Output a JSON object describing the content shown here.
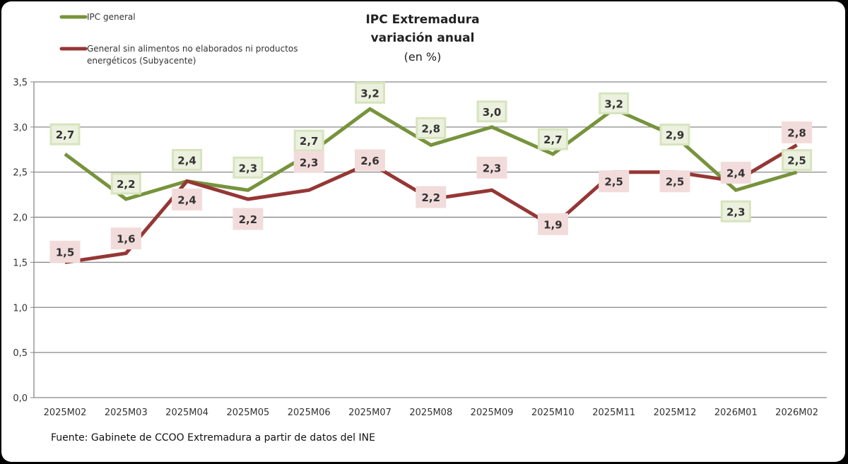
{
  "chart_data": {
    "type": "line",
    "title": "IPC Extremadura",
    "title_line2": "variación anual",
    "subtitle": "(en %)",
    "categories": [
      "2025M02",
      "2025M03",
      "2025M04",
      "2025M05",
      "2025M06",
      "2025M07",
      "2025M08",
      "2025M09",
      "2025M10",
      "2025M11",
      "2025M12",
      "2026M01",
      "2026M02"
    ],
    "ylim": [
      0,
      3.5
    ],
    "yticks": [
      "0,0",
      "0,5",
      "1,0",
      "1,5",
      "2,0",
      "2,5",
      "3,0",
      "3,5"
    ],
    "grid": true,
    "legend_position": "top-left",
    "series": [
      {
        "name": "IPC general",
        "color": "#77933c",
        "label_fill": "#ebf1de",
        "label_border": "#d7e4bd",
        "values": [
          2.7,
          2.2,
          2.4,
          2.3,
          2.7,
          3.2,
          2.8,
          3.0,
          2.7,
          3.2,
          2.9,
          2.3,
          2.5
        ],
        "labels": [
          "2,7",
          "2,2",
          "2,4",
          "2,3",
          "2,7",
          "3,2",
          "2,8",
          "3,0",
          "2,7",
          "3,2",
          "2,9",
          "2,3",
          "2,5"
        ]
      },
      {
        "name": "General sin alimentos no elaborados ni productos energéticos (Subyacente)",
        "color": "#953735",
        "label_fill": "#f2dcdb",
        "label_border": "#f2dcdb",
        "values": [
          1.5,
          1.6,
          2.4,
          2.2,
          2.3,
          2.6,
          2.2,
          2.3,
          1.9,
          2.5,
          2.5,
          2.4,
          2.8
        ],
        "labels": [
          "1,5",
          "1,6",
          "2,4",
          "2,2",
          "2,3",
          "2,6",
          "2,2",
          "2,3",
          "1,9",
          "2,5",
          "2,5",
          "2,4",
          "2,8"
        ]
      }
    ],
    "legend": [
      "IPC general",
      "General sin alimentos no elaborados ni productos",
      "energéticos (Subyacente)"
    ]
  },
  "source": "Fuente: Gabinete de CCOO Extremadura a partir de datos del INE"
}
